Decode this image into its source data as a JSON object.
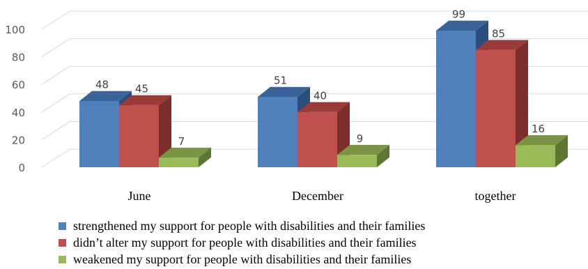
{
  "chart_data": {
    "type": "bar",
    "three_d": true,
    "categories": [
      "June",
      "December",
      "together"
    ],
    "series": [
      {
        "name": "strengthened my support for people with disabilities and their families",
        "values": [
          48,
          51,
          99
        ],
        "color": "#4f81bd",
        "side_color": "#2e4d7b",
        "top_color": "#3a6499"
      },
      {
        "name": "didn’t alter my support for people with disabilities and their families",
        "values": [
          45,
          40,
          85
        ],
        "color": "#c0504d",
        "side_color": "#7b2e2c",
        "top_color": "#9a3b39"
      },
      {
        "name": "weakened my support for people with disabilities and their families",
        "values": [
          7,
          9,
          16
        ],
        "color": "#9bbb59",
        "side_color": "#5f7532",
        "top_color": "#7a9444"
      }
    ],
    "ylim": [
      0,
      100
    ],
    "yticks": [
      0,
      20,
      40,
      60,
      80,
      100
    ],
    "data_labels": true,
    "grid": true,
    "legend_position": "bottom"
  }
}
